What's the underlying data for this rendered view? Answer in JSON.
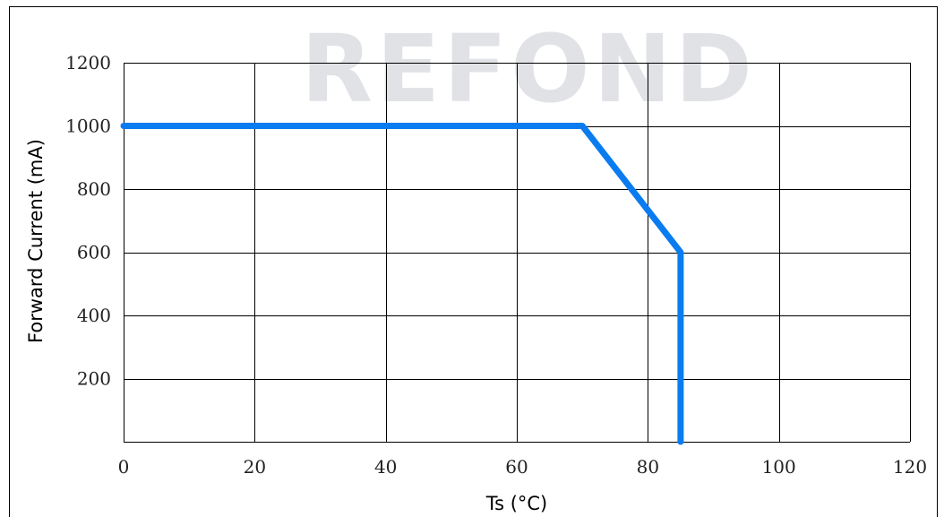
{
  "watermark": "REFOND",
  "chart_data": {
    "type": "line",
    "title": "",
    "xlabel": "Ts (°C)",
    "ylabel": "Forward Current (mA)",
    "xlim": [
      0,
      120
    ],
    "ylim": [
      0,
      1200
    ],
    "x_ticks": [
      0,
      20,
      40,
      60,
      80,
      100,
      120
    ],
    "y_ticks": [
      200,
      400,
      600,
      800,
      1000,
      1200
    ],
    "grid": true,
    "series": [
      {
        "color": "#0a7cf0",
        "x": [
          0,
          70,
          85,
          85
        ],
        "y": [
          1000,
          1000,
          600,
          0
        ]
      }
    ]
  }
}
